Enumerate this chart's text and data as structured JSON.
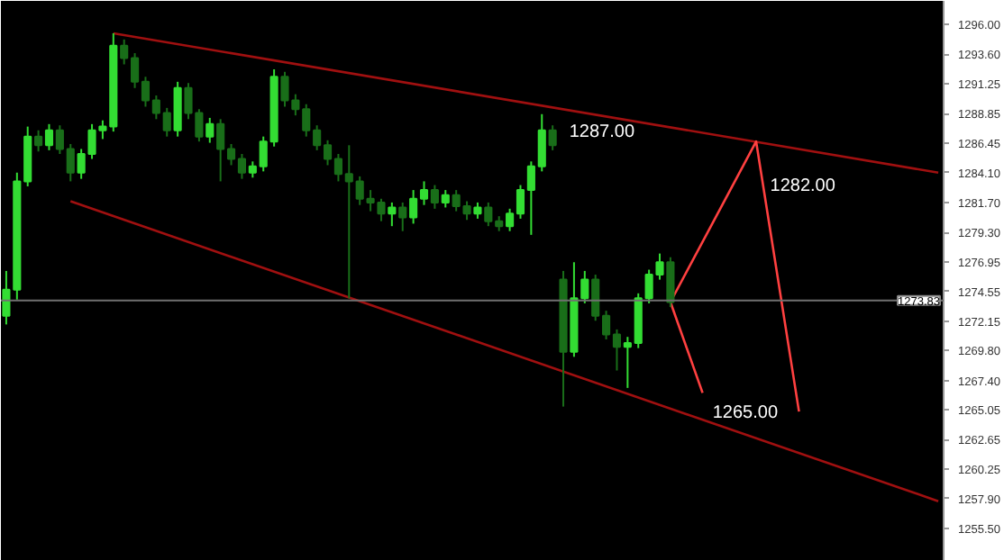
{
  "chart_data": {
    "type": "candlestick",
    "colors": [
      "#33dd33",
      "#33dd33",
      "#33dd33",
      "#196e19",
      "#33dd33",
      "#196e19",
      "#196e19",
      "#33dd33",
      "#33dd33",
      "#33dd33",
      "#33dd33",
      "#196e19",
      "#196e19",
      "#196e19",
      "#196e19",
      "#196e19",
      "#33dd33",
      "#196e19",
      "#196e19",
      "#33dd33",
      "#196e19",
      "#196e19",
      "#196e19",
      "#33dd33",
      "#33dd33",
      "#33dd33",
      "#196e19",
      "#196e19",
      "#196e19",
      "#196e19",
      "#196e19",
      "#196e19",
      "#196e19",
      "#196e19",
      "#196e19",
      "#196e19",
      "#33dd33",
      "#196e19",
      "#33dd33",
      "#33dd33",
      "#196e19",
      "#33dd33",
      "#196e19",
      "#196e19",
      "#33dd33",
      "#196e19",
      "#196e19",
      "#33dd33",
      "#33dd33",
      "#33dd33",
      "#33dd33",
      "#196e19",
      "#196e19",
      "#33dd33",
      "#33dd33",
      "#196e19",
      "#196e19",
      "#196e19",
      "#33dd33",
      "#33dd33",
      "#33dd33",
      "#33dd33",
      "#196e19",
      null,
      null,
      null,
      null,
      null,
      null,
      null,
      null,
      null,
      null,
      null,
      null,
      null,
      null,
      null,
      null,
      null,
      null,
      null,
      null,
      null,
      null,
      null,
      null,
      null
    ],
    "categories": [
      null,
      null,
      null,
      null,
      null,
      null,
      null,
      null,
      null,
      null,
      null,
      null,
      null,
      null,
      null,
      null,
      null,
      null,
      null,
      null,
      null,
      null,
      null,
      null,
      null,
      null,
      null,
      null,
      null,
      null,
      null,
      null,
      null,
      null,
      null,
      null,
      null,
      null,
      null,
      null,
      null,
      null,
      null,
      null,
      null,
      null,
      null,
      null,
      null,
      null,
      null,
      null,
      null,
      null,
      null,
      null,
      null,
      null,
      null,
      null,
      null,
      null,
      null,
      null,
      null,
      null,
      null,
      null,
      null,
      null,
      null,
      null,
      null,
      null,
      null,
      null,
      null,
      null,
      null,
      null,
      null,
      null,
      null,
      null,
      null,
      null,
      null,
      null
    ],
    "ohlc": [
      [
        1272.6,
        1276.2,
        1271.9,
        1274.7
      ],
      [
        1274.7,
        1284.1,
        1273.9,
        1283.4
      ],
      [
        1283.4,
        1287.8,
        1283.0,
        1287.0
      ],
      [
        1287.0,
        1287.5,
        1285.8,
        1286.3
      ],
      [
        1286.3,
        1288.0,
        1285.9,
        1287.5
      ],
      [
        1287.5,
        1287.9,
        1285.6,
        1286.0
      ],
      [
        1286.0,
        1286.4,
        1283.4,
        1284.1
      ],
      [
        1284.1,
        1286.0,
        1283.6,
        1285.6
      ],
      [
        1285.6,
        1288.0,
        1285.2,
        1287.5
      ],
      [
        1287.5,
        1288.3,
        1286.8,
        1287.8
      ],
      [
        1287.8,
        1295.3,
        1287.4,
        1294.3
      ],
      [
        1294.3,
        1294.8,
        1292.8,
        1293.3
      ],
      [
        1293.3,
        1293.7,
        1290.9,
        1291.4
      ],
      [
        1291.4,
        1291.8,
        1289.4,
        1289.9
      ],
      [
        1289.9,
        1290.3,
        1288.4,
        1288.9
      ],
      [
        1288.9,
        1289.3,
        1287.0,
        1287.5
      ],
      [
        1287.5,
        1291.4,
        1287.0,
        1290.9
      ],
      [
        1290.9,
        1291.3,
        1288.4,
        1288.9
      ],
      [
        1288.9,
        1289.2,
        1286.6,
        1287.0
      ],
      [
        1287.0,
        1288.5,
        1286.5,
        1288.0
      ],
      [
        1288.0,
        1288.4,
        1283.4,
        1286.0
      ],
      [
        1286.0,
        1286.4,
        1284.7,
        1285.2
      ],
      [
        1285.2,
        1285.6,
        1283.6,
        1284.1
      ],
      [
        1284.1,
        1285.0,
        1283.7,
        1284.6
      ],
      [
        1284.6,
        1287.0,
        1284.2,
        1286.6
      ],
      [
        1286.6,
        1292.4,
        1286.2,
        1291.8
      ],
      [
        1291.8,
        1292.2,
        1289.4,
        1289.9
      ],
      [
        1289.9,
        1290.4,
        1288.7,
        1289.2
      ],
      [
        1289.2,
        1289.6,
        1287.0,
        1287.5
      ],
      [
        1287.5,
        1287.9,
        1285.9,
        1286.3
      ],
      [
        1286.3,
        1286.7,
        1284.7,
        1285.2
      ],
      [
        1285.2,
        1285.6,
        1283.4,
        1284.0
      ],
      [
        1284.0,
        1286.3,
        1274.0,
        1283.4
      ],
      [
        1283.4,
        1283.8,
        1281.5,
        1282.0
      ],
      [
        1282.0,
        1282.7,
        1281.0,
        1281.7
      ],
      [
        1281.7,
        1282.0,
        1280.2,
        1280.8
      ],
      [
        1280.8,
        1281.7,
        1279.8,
        1281.3
      ],
      [
        1281.3,
        1281.7,
        1279.4,
        1280.5
      ],
      [
        1280.5,
        1282.7,
        1280.0,
        1282.0
      ],
      [
        1282.0,
        1283.4,
        1281.5,
        1282.7
      ],
      [
        1282.7,
        1283.1,
        1281.2,
        1281.7
      ],
      [
        1281.7,
        1282.7,
        1281.3,
        1282.3
      ],
      [
        1282.3,
        1282.7,
        1281.0,
        1281.4
      ],
      [
        1281.4,
        1281.8,
        1280.3,
        1280.8
      ],
      [
        1280.8,
        1281.7,
        1280.4,
        1281.3
      ],
      [
        1281.3,
        1281.7,
        1279.8,
        1280.2
      ],
      [
        1280.2,
        1280.6,
        1279.4,
        1279.8
      ],
      [
        1279.8,
        1281.2,
        1279.4,
        1280.8
      ],
      [
        1280.8,
        1283.1,
        1280.4,
        1282.7
      ],
      [
        1282.7,
        1285.0,
        1279.1,
        1284.6
      ],
      [
        1284.6,
        1288.8,
        1284.2,
        1287.5
      ],
      [
        1287.5,
        1287.9,
        1285.9,
        1286.3
      ],
      [
        1275.5,
        1276.2,
        1265.3,
        1269.7
      ],
      [
        1269.7,
        1276.9,
        1269.3,
        1274.0
      ],
      [
        1274.0,
        1276.2,
        1273.6,
        1275.5
      ],
      [
        1275.5,
        1275.9,
        1272.2,
        1272.6
      ],
      [
        1272.6,
        1273.0,
        1270.7,
        1271.1
      ],
      [
        1271.1,
        1271.5,
        1268.2,
        1270.1
      ],
      [
        1270.1,
        1270.9,
        1266.8,
        1270.4
      ],
      [
        1270.4,
        1274.4,
        1270.0,
        1274.0
      ],
      [
        1274.0,
        1276.3,
        1273.6,
        1275.9
      ],
      [
        1275.9,
        1277.6,
        1275.5,
        1276.9
      ],
      [
        1276.9,
        1277.3,
        1273.3,
        1273.7
      ],
      null,
      null,
      null,
      null,
      null,
      null,
      null,
      null,
      null,
      null,
      null,
      null,
      null,
      null,
      null,
      null,
      null,
      null,
      null,
      null,
      null,
      null,
      null,
      null,
      null
    ],
    "series": [
      {
        "type": "line",
        "color": "#a01010",
        "values": [
          null,
          null,
          null,
          null,
          null,
          null,
          null,
          null,
          null,
          null,
          1295.3,
          null,
          null,
          null,
          null,
          null,
          null,
          null,
          null,
          null,
          null,
          null,
          null,
          null,
          null,
          null,
          null,
          null,
          null,
          null,
          null,
          null,
          null,
          null,
          null,
          null,
          null,
          null,
          null,
          null,
          null,
          null,
          null,
          null,
          null,
          null,
          null,
          null,
          null,
          null,
          null,
          null,
          null,
          null,
          null,
          null,
          null,
          null,
          null,
          null,
          null,
          null,
          null,
          null,
          null,
          null,
          null,
          null,
          null,
          null,
          null,
          null,
          null,
          null,
          null,
          null,
          null,
          null,
          null,
          null,
          null,
          null,
          null,
          null,
          null,
          null,
          null,
          1284.1
        ]
      },
      {
        "type": "line",
        "color": "#a01010",
        "values": [
          null,
          null,
          null,
          null,
          null,
          null,
          1281.8,
          null,
          null,
          null,
          null,
          null,
          null,
          null,
          null,
          null,
          null,
          null,
          null,
          null,
          null,
          null,
          null,
          null,
          null,
          null,
          null,
          null,
          null,
          null,
          null,
          null,
          null,
          null,
          null,
          null,
          null,
          null,
          null,
          null,
          null,
          null,
          null,
          null,
          null,
          null,
          null,
          null,
          null,
          null,
          null,
          null,
          null,
          null,
          null,
          null,
          null,
          null,
          null,
          null,
          null,
          null,
          null,
          null,
          null,
          null,
          null,
          null,
          null,
          null,
          null,
          null,
          null,
          null,
          null,
          null,
          null,
          null,
          null,
          null,
          null,
          null,
          null,
          null,
          null,
          null,
          null,
          1257.7
        ]
      },
      {
        "type": "line",
        "color": "#ff4040",
        "values": [
          null,
          null,
          null,
          null,
          null,
          null,
          null,
          null,
          null,
          null,
          null,
          null,
          null,
          null,
          null,
          null,
          null,
          null,
          null,
          null,
          null,
          null,
          null,
          null,
          null,
          null,
          null,
          null,
          null,
          null,
          null,
          null,
          null,
          null,
          null,
          null,
          null,
          null,
          null,
          null,
          null,
          null,
          null,
          null,
          null,
          null,
          null,
          null,
          null,
          null,
          null,
          null,
          null,
          null,
          null,
          null,
          null,
          null,
          null,
          null,
          null,
          null,
          1273.7,
          null,
          null,
          null,
          null,
          null,
          null,
          null,
          1286.6,
          null,
          null,
          null,
          1264.9,
          null,
          null,
          null,
          null,
          null,
          null,
          null,
          null,
          null,
          null,
          null,
          null,
          null
        ]
      },
      {
        "type": "line",
        "color": "#ff4040",
        "values": [
          null,
          null,
          null,
          null,
          null,
          null,
          null,
          null,
          null,
          null,
          null,
          null,
          null,
          null,
          null,
          null,
          null,
          null,
          null,
          null,
          null,
          null,
          null,
          null,
          null,
          null,
          null,
          null,
          null,
          null,
          null,
          null,
          null,
          null,
          null,
          null,
          null,
          null,
          null,
          null,
          null,
          null,
          null,
          null,
          null,
          null,
          null,
          null,
          null,
          null,
          null,
          null,
          null,
          null,
          null,
          null,
          null,
          null,
          null,
          null,
          null,
          null,
          1273.7,
          null,
          null,
          1266.4,
          null,
          null,
          null,
          null,
          null,
          null,
          null,
          null,
          null,
          null,
          null,
          null,
          null,
          null,
          null,
          null,
          null,
          null,
          null,
          null,
          null,
          null
        ]
      }
    ],
    "annotations": [
      "1287.00",
      "1282.00",
      "1265.00"
    ],
    "ref_lines": [
      {
        "axis": "y",
        "value": 1273.83,
        "label": "1273.83",
        "color": "#707070"
      }
    ],
    "ylim": [
      1252.9,
      1297.9
    ],
    "yticks": [
      {
        "value": 1296.0,
        "label": "1296.00"
      },
      {
        "value": 1293.6,
        "label": "1293.60"
      },
      {
        "value": 1291.25,
        "label": "1291.25"
      },
      {
        "value": 1288.85,
        "label": "1288.85"
      },
      {
        "value": 1286.45,
        "label": "1286.45"
      },
      {
        "value": 1284.1,
        "label": "1284.10"
      },
      {
        "value": 1281.7,
        "label": "1281.70"
      },
      {
        "value": 1279.3,
        "label": "1279.30"
      },
      {
        "value": 1276.95,
        "label": "1276.95"
      },
      {
        "value": 1274.55,
        "label": "1274.55"
      },
      {
        "value": 1272.15,
        "label": "1272.15"
      },
      {
        "value": 1269.8,
        "label": "1269.80"
      },
      {
        "value": 1267.4,
        "label": "1267.40"
      },
      {
        "value": 1265.05,
        "label": "1265.05"
      },
      {
        "value": 1262.65,
        "label": "1262.65"
      },
      {
        "value": 1260.25,
        "label": "1260.25"
      },
      {
        "value": 1257.9,
        "label": "1257.90"
      },
      {
        "value": 1255.5,
        "label": "1255.50"
      }
    ],
    "tick_labels": "y",
    "grid": false
  }
}
